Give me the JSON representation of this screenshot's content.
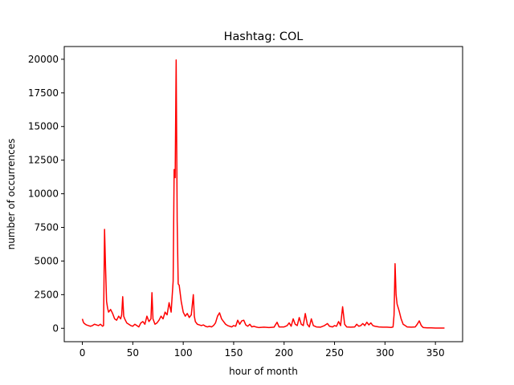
{
  "chart_data": {
    "type": "line",
    "title": "Hashtag: COL",
    "xlabel": "hour of month",
    "ylabel": "number of occurrences",
    "x": [
      0,
      1,
      2,
      4,
      6,
      8,
      10,
      12,
      14,
      16,
      18,
      20,
      21,
      22,
      23,
      24,
      25,
      26,
      28,
      30,
      32,
      34,
      36,
      38,
      39,
      40,
      41,
      42,
      44,
      46,
      48,
      50,
      52,
      54,
      56,
      58,
      60,
      62,
      64,
      66,
      68,
      69,
      70,
      72,
      74,
      76,
      78,
      80,
      82,
      84,
      86,
      88,
      90,
      91,
      92,
      93,
      94,
      95,
      96,
      98,
      100,
      102,
      104,
      106,
      108,
      110,
      111,
      112,
      114,
      116,
      118,
      120,
      122,
      124,
      126,
      128,
      130,
      132,
      134,
      136,
      138,
      140,
      142,
      144,
      146,
      148,
      150,
      152,
      154,
      156,
      158,
      160,
      162,
      164,
      166,
      168,
      170,
      172,
      175,
      180,
      185,
      190,
      193,
      195,
      200,
      203,
      205,
      207,
      209,
      211,
      213,
      215,
      217,
      219,
      221,
      223,
      225,
      227,
      229,
      232,
      236,
      240,
      243,
      245,
      248,
      250,
      252,
      254,
      256,
      258,
      260,
      262,
      266,
      270,
      272,
      274,
      276,
      278,
      280,
      282,
      284,
      286,
      288,
      290,
      294,
      298,
      302,
      306,
      308,
      309,
      310,
      311,
      312,
      314,
      316,
      318,
      320,
      322,
      326,
      330,
      332,
      334,
      336,
      338,
      342,
      346,
      350,
      355,
      359
    ],
    "values": [
      700,
      450,
      350,
      250,
      200,
      150,
      200,
      300,
      250,
      200,
      300,
      150,
      200,
      7350,
      4500,
      2000,
      1500,
      1200,
      1400,
      1100,
      700,
      600,
      900,
      700,
      1000,
      2350,
      900,
      700,
      400,
      300,
      200,
      150,
      300,
      200,
      100,
      400,
      500,
      300,
      900,
      500,
      700,
      2650,
      700,
      300,
      400,
      600,
      900,
      700,
      1200,
      1000,
      1900,
      1200,
      3500,
      11800,
      11200,
      19950,
      8000,
      3300,
      3200,
      2000,
      1200,
      900,
      1100,
      800,
      1000,
      2500,
      900,
      500,
      300,
      250,
      200,
      250,
      150,
      100,
      150,
      100,
      200,
      400,
      900,
      1150,
      700,
      500,
      300,
      200,
      150,
      100,
      200,
      150,
      600,
      300,
      550,
      600,
      250,
      150,
      300,
      100,
      150,
      100,
      50,
      80,
      50,
      80,
      450,
      100,
      100,
      200,
      400,
      150,
      700,
      300,
      200,
      800,
      300,
      200,
      1100,
      300,
      100,
      700,
      200,
      100,
      80,
      200,
      350,
      150,
      100,
      200,
      150,
      500,
      200,
      1600,
      300,
      100,
      80,
      100,
      300,
      150,
      200,
      350,
      200,
      450,
      250,
      400,
      200,
      150,
      100,
      80,
      80,
      60,
      100,
      1000,
      4800,
      2500,
      1800,
      1300,
      700,
      300,
      200,
      100,
      80,
      100,
      300,
      550,
      200,
      50,
      30,
      30,
      20,
      20,
      20
    ],
    "color": "#ff0000",
    "xlim": [
      -17.95,
      376.95
    ],
    "xticks": [
      0,
      50,
      100,
      150,
      200,
      250,
      300,
      350
    ],
    "ylim": [
      -997.5,
      20947.5
    ],
    "yticks": [
      0,
      2500,
      5000,
      7500,
      10000,
      12500,
      15000,
      17500,
      20000
    ]
  }
}
